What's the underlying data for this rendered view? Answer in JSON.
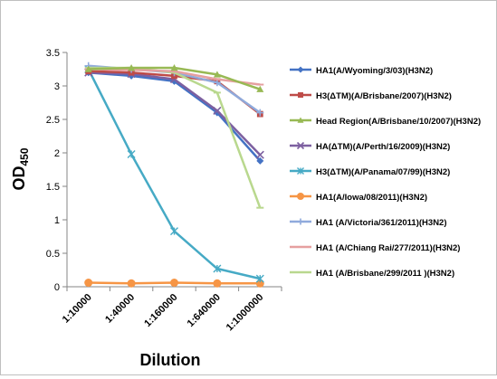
{
  "chart_data": {
    "type": "line",
    "title": "",
    "xlabel": "Dilution",
    "ylabel": "OD",
    "ylabel_sub": "450",
    "categories": [
      "1:10000",
      "1:40000",
      "1:160000",
      "1:640000",
      "1:1000000"
    ],
    "ylim": [
      0,
      3.5
    ],
    "yticks": [
      "0",
      "0.5",
      "1",
      "1.5",
      "2",
      "2.5",
      "3",
      "3.5"
    ],
    "grid": false,
    "legend_position": "right",
    "series": [
      {
        "name": "HA1(A/Wyoming/3/03)(H3N2)",
        "values": [
          3.2,
          3.15,
          3.07,
          2.6,
          1.88
        ],
        "color": "#4472C4",
        "marker": "diamond"
      },
      {
        "name": "H3(ΔTM)(A/Brisbane/2007)(H3N2)",
        "values": [
          3.22,
          3.2,
          3.15,
          3.07,
          2.58
        ],
        "color": "#BE4B48",
        "marker": "square"
      },
      {
        "name": "Head Region(A/Brisbane/10/2007)(H3N2)",
        "values": [
          3.25,
          3.27,
          3.27,
          3.17,
          2.95
        ],
        "color": "#98B954",
        "marker": "triangle"
      },
      {
        "name": "HA(ΔTM)(A/Perth/16/2009)(H3N2)",
        "values": [
          3.2,
          3.18,
          3.1,
          2.63,
          1.97
        ],
        "color": "#7D60A0",
        "marker": "x"
      },
      {
        "name": "H3(ΔTM)(A/Panama/07/99)(H3N2)",
        "values": [
          3.25,
          1.98,
          0.83,
          0.27,
          0.12
        ],
        "color": "#46AAC5",
        "marker": "star"
      },
      {
        "name": "HA1(A/Iowa/08/2011)(H3N2)",
        "values": [
          0.06,
          0.05,
          0.06,
          0.05,
          0.05
        ],
        "color": "#F69545",
        "marker": "circle"
      },
      {
        "name": "HA1 (A/Victoria/361/2011)(H3N2)",
        "values": [
          3.3,
          3.25,
          3.2,
          3.05,
          2.6
        ],
        "color": "#8FAADC",
        "marker": "plus"
      },
      {
        "name": "HA1 (A/Chiang Rai/277/2011)(H3N2)",
        "values": [
          3.25,
          3.24,
          3.22,
          3.1,
          3.02
        ],
        "color": "#E6A0A0",
        "marker": "dash"
      },
      {
        "name": "HA1 (A/Brisbane/299/2011 )(H3N2)",
        "values": [
          3.27,
          3.27,
          3.2,
          2.9,
          1.18
        ],
        "color": "#B9D88E",
        "marker": "dash"
      }
    ]
  }
}
